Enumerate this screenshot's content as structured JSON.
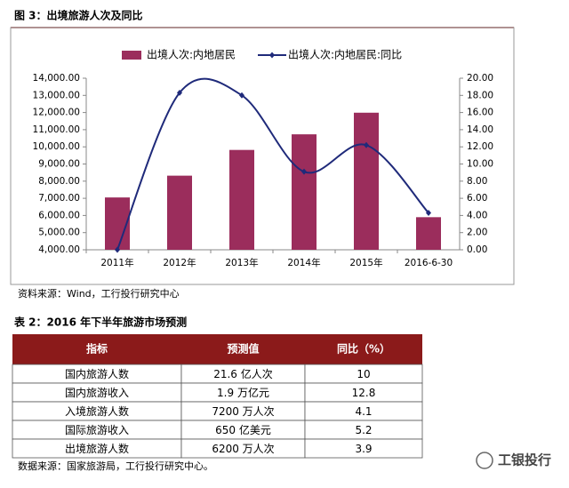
{
  "figure_caption": "图 3：出境旅游人次及同比",
  "chart_data": {
    "type": "bar-line",
    "categories": [
      "2011年",
      "2012年",
      "2013年",
      "2014年",
      "2015年",
      "2016-6-30"
    ],
    "series": [
      {
        "name": "出境人次:内地居民",
        "type": "bar",
        "color": "#9b2d5c",
        "values": [
          7050,
          8320,
          9820,
          10730,
          11990,
          5900
        ]
      },
      {
        "name": "出境人次:内地居民:同比",
        "type": "line",
        "axis": "y2",
        "color": "#1f2a7a",
        "values": [
          0.0,
          18.3,
          18.0,
          9.1,
          12.2,
          4.3
        ]
      }
    ],
    "ylim": [
      4000,
      14000
    ],
    "yticks": [
      {
        "value": 4000,
        "label": "4,000.00"
      },
      {
        "value": 5000,
        "label": "5,000.00"
      },
      {
        "value": 6000,
        "label": "6,000.00"
      },
      {
        "value": 7000,
        "label": "7,000.00"
      },
      {
        "value": 8000,
        "label": "8,000.00"
      },
      {
        "value": 9000,
        "label": "9,000.00"
      },
      {
        "value": 10000,
        "label": "10,000.00"
      },
      {
        "value": 11000,
        "label": "11,000.00"
      },
      {
        "value": 12000,
        "label": "12,000.00"
      },
      {
        "value": 13000,
        "label": "13,000.00"
      },
      {
        "value": 14000,
        "label": "14,000.00"
      }
    ],
    "y2lim": [
      0,
      20
    ],
    "y2ticks": [
      {
        "value": 0,
        "label": "0.00"
      },
      {
        "value": 2,
        "label": "2.00"
      },
      {
        "value": 4,
        "label": "4.00"
      },
      {
        "value": 6,
        "label": "6.00"
      },
      {
        "value": 8,
        "label": "8.00"
      },
      {
        "value": 10,
        "label": "10.00"
      },
      {
        "value": 12,
        "label": "12.00"
      },
      {
        "value": 14,
        "label": "14.00"
      },
      {
        "value": 16,
        "label": "16.00"
      },
      {
        "value": 18,
        "label": "18.00"
      },
      {
        "value": 20,
        "label": "20.00"
      }
    ],
    "grid": false,
    "legend": "top"
  },
  "chart_source": "资料来源：Wind，工行投行研究中心",
  "table_caption": "表 2：2016 年下半年旅游市场预测",
  "table": {
    "header": [
      "指标",
      "预测值",
      "同比（%）"
    ],
    "rows": [
      [
        "国内旅游人数",
        "21.6 亿人次",
        "10"
      ],
      [
        "国内旅游收入",
        "1.9 万亿元",
        "12.8"
      ],
      [
        "入境旅游人数",
        "7200 万人次",
        "4.1"
      ],
      [
        "国际旅游收入",
        "650 亿美元",
        "5.2"
      ],
      [
        "出境旅游人数",
        "6200 万人次",
        "3.9"
      ]
    ]
  },
  "table_source": "数据来源：国家旅游局，工行投行研究中心。",
  "watermark": "工银投行"
}
